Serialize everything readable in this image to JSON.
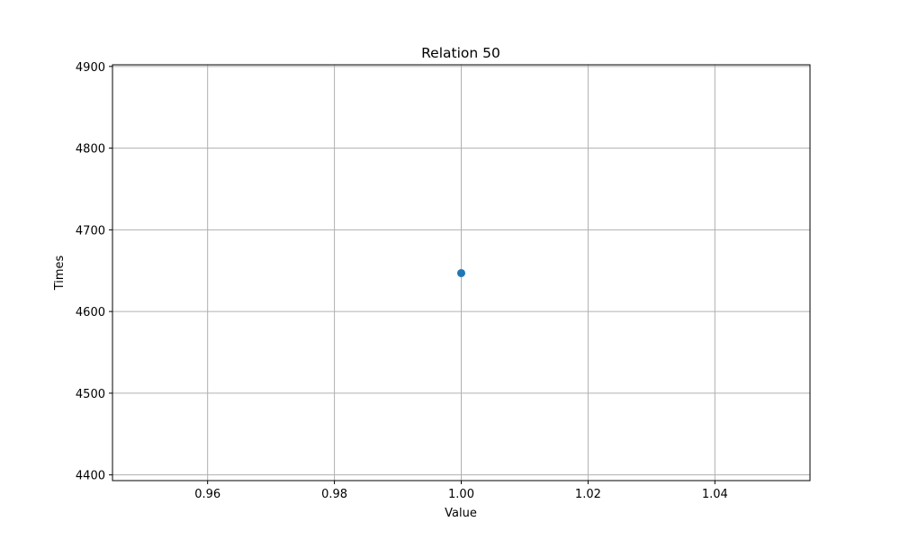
{
  "chart_data": {
    "type": "scatter",
    "title": "Relation 50",
    "xlabel": "Value",
    "ylabel": "Times",
    "xlim": [
      0.945,
      1.055
    ],
    "ylim": [
      4393,
      4902
    ],
    "xticks": [
      0.96,
      0.98,
      1.0,
      1.02,
      1.04
    ],
    "xtick_labels": [
      "0.96",
      "0.98",
      "1.00",
      "1.02",
      "1.04"
    ],
    "yticks": [
      4400,
      4500,
      4600,
      4700,
      4800,
      4900
    ],
    "ytick_labels": [
      "4400",
      "4500",
      "4600",
      "4700",
      "4800",
      "4900"
    ],
    "grid": true,
    "series": [
      {
        "points": [
          {
            "x": 1.0,
            "y": 4647
          }
        ]
      }
    ],
    "colors": {
      "point": "#1f77b4",
      "grid": "#b0b0b0",
      "axes": "#000000"
    }
  }
}
